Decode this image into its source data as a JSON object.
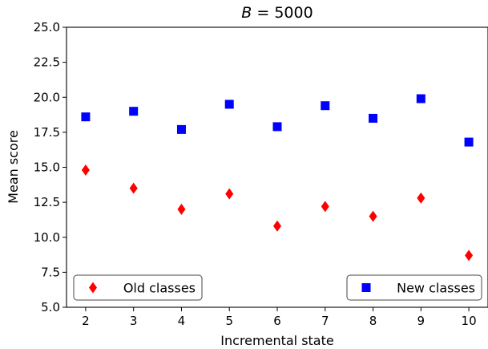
{
  "chart_data": {
    "type": "scatter",
    "title": "$B = 5000$",
    "title_parts": {
      "var": "B",
      "rest": " = 5000"
    },
    "xlabel": "Incremental state",
    "ylabel": "Mean score",
    "xlim": [
      1.6,
      10.4
    ],
    "ylim": [
      5.0,
      25.0
    ],
    "x_ticks": [
      2,
      3,
      4,
      5,
      6,
      7,
      8,
      9,
      10
    ],
    "y_ticks": [
      5.0,
      7.5,
      10.0,
      12.5,
      15.0,
      17.5,
      20.0,
      22.5,
      25.0
    ],
    "y_tick_labels": [
      "5.0",
      "7.5",
      "10.0",
      "12.5",
      "15.0",
      "17.5",
      "20.0",
      "22.5",
      "25.0"
    ],
    "grid": false,
    "series": [
      {
        "name": "Old classes",
        "marker": "diamond",
        "color": "#ff0000",
        "legend_position": "lower-left",
        "x": [
          2,
          3,
          4,
          5,
          6,
          7,
          8,
          9,
          10
        ],
        "y": [
          14.8,
          13.5,
          12.0,
          13.1,
          10.8,
          12.2,
          11.5,
          12.8,
          8.7
        ]
      },
      {
        "name": "New classes",
        "marker": "square",
        "color": "#0000ff",
        "legend_position": "lower-right",
        "x": [
          2,
          3,
          4,
          5,
          6,
          7,
          8,
          9,
          10
        ],
        "y": [
          18.6,
          19.0,
          17.7,
          19.5,
          17.9,
          19.4,
          18.5,
          19.9,
          16.8
        ]
      }
    ]
  }
}
